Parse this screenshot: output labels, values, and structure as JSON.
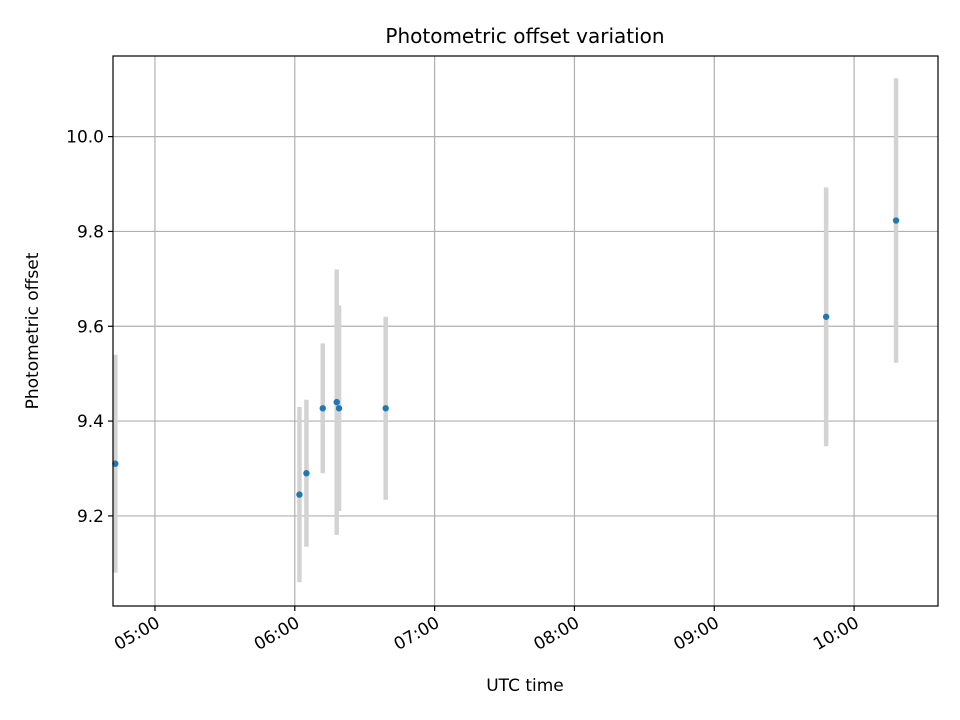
{
  "chart_data": {
    "type": "scatter",
    "title": "Photometric offset variation",
    "xlabel": "UTC time",
    "ylabel": "Photometric offset",
    "grid": true,
    "x_axis_type": "time",
    "xlim": [
      "04:42",
      "10:36"
    ],
    "ylim": [
      9.01,
      10.17
    ],
    "x_ticks": [
      "05:00",
      "06:00",
      "07:00",
      "08:00",
      "09:00",
      "10:00"
    ],
    "y_ticks": [
      9.2,
      9.4,
      9.6,
      9.8,
      10.0
    ],
    "y_tick_labels": [
      "9.2",
      "9.4",
      "9.6",
      "9.8",
      "10.0"
    ],
    "colors": {
      "point": "#1f77b4",
      "errorbar": "#d3d3d3",
      "grid": "#b0b0b0"
    },
    "points": [
      {
        "x": "04:43",
        "y": 9.31,
        "yerr": 0.23
      },
      {
        "x": "06:02",
        "y": 9.245,
        "yerr": 0.185
      },
      {
        "x": "06:05",
        "y": 9.29,
        "yerr": 0.155
      },
      {
        "x": "06:12",
        "y": 9.427,
        "yerr": 0.137
      },
      {
        "x": "06:18",
        "y": 9.44,
        "yerr": 0.28
      },
      {
        "x": "06:19",
        "y": 9.427,
        "yerr": 0.217
      },
      {
        "x": "06:39",
        "y": 9.427,
        "yerr": 0.193
      },
      {
        "x": "09:48",
        "y": 9.62,
        "yerr": 0.273
      },
      {
        "x": "10:18",
        "y": 9.823,
        "yerr": 0.3
      }
    ]
  }
}
